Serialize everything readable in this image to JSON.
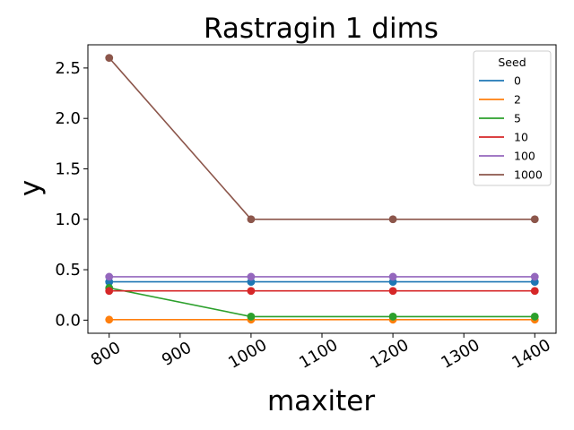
{
  "chart_data": {
    "type": "line",
    "title": "Rastragin 1 dims",
    "xlabel": "maxiter",
    "ylabel": "y",
    "x": [
      800,
      1000,
      1200,
      1400
    ],
    "xlim": [
      770,
      1430
    ],
    "ylim": [
      -0.13,
      2.73
    ],
    "xticks": [
      800,
      900,
      1000,
      1100,
      1200,
      1300,
      1400
    ],
    "yticks": [
      0.0,
      0.5,
      1.0,
      1.5,
      2.0,
      2.5
    ],
    "ytick_labels": [
      "0.0",
      "0.5",
      "1.0",
      "1.5",
      "2.0",
      "2.5"
    ],
    "grid": false,
    "legend": {
      "title": "Seed",
      "placement": "top-right"
    },
    "series": [
      {
        "name": "0",
        "color": "#1f77b4",
        "values": [
          0.38,
          0.38,
          0.38,
          0.38
        ]
      },
      {
        "name": "2",
        "color": "#ff7f0e",
        "values": [
          0.005,
          0.005,
          0.005,
          0.005
        ]
      },
      {
        "name": "5",
        "color": "#2ca02c",
        "values": [
          0.32,
          0.035,
          0.035,
          0.035
        ]
      },
      {
        "name": "10",
        "color": "#d62728",
        "values": [
          0.29,
          0.29,
          0.29,
          0.29
        ]
      },
      {
        "name": "100",
        "color": "#9467bd",
        "values": [
          0.43,
          0.43,
          0.43,
          0.43
        ]
      },
      {
        "name": "1000",
        "color": "#8c564b",
        "values": [
          2.6,
          1.0,
          1.0,
          1.0
        ]
      }
    ]
  }
}
